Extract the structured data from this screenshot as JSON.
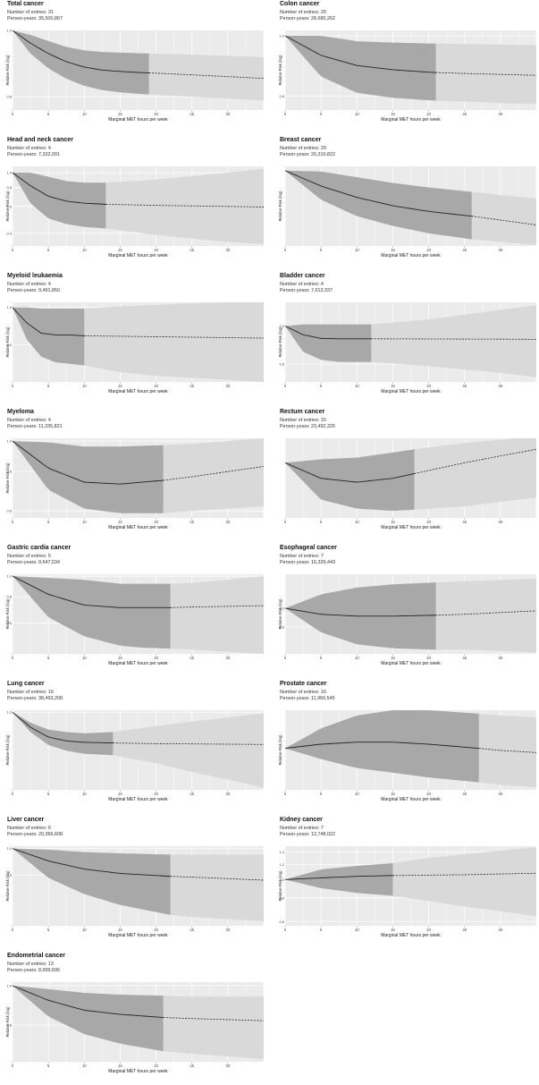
{
  "chart_data": [
    {
      "type": "line",
      "title": "Total cancer",
      "entries_label": "Number of entries: 31",
      "py_label": "Person-years: 35,500,867",
      "ylabel": "Relative Risk (log)",
      "xlabel": "Marginal MET hours per week",
      "xlim": [
        0,
        35
      ],
      "ylim": [
        0.765,
        1.0
      ],
      "yticks": [
        1.0,
        0.8
      ],
      "ytick_labels": [
        "1.0",
        "0.8"
      ],
      "xticks": [
        0,
        5,
        10,
        15,
        20,
        25,
        30
      ],
      "xtick_labels": [
        "0",
        "5",
        "10",
        "15",
        "20",
        "25",
        "30"
      ],
      "dense_until": 19,
      "x": [
        0,
        2.5,
        5,
        7.5,
        10,
        12.5,
        15,
        17.5,
        20,
        25,
        30,
        35
      ],
      "y": [
        1.0,
        0.958,
        0.925,
        0.9,
        0.884,
        0.875,
        0.871,
        0.868,
        0.866,
        0.861,
        0.856,
        0.851
      ],
      "lower": [
        1.0,
        0.925,
        0.88,
        0.85,
        0.83,
        0.818,
        0.812,
        0.808,
        0.805,
        0.8,
        0.795,
        0.79
      ],
      "upper": [
        1.0,
        0.985,
        0.965,
        0.946,
        0.935,
        0.93,
        0.928,
        0.926,
        0.925,
        0.922,
        0.918,
        0.914
      ]
    },
    {
      "type": "line",
      "title": "Colon cancer",
      "entries_label": "Number of entries: 20",
      "py_label": "Person-years: 28,680,262",
      "ylabel": "Relative Risk (log)",
      "xlabel": "Marginal MET hours per week",
      "xlim": [
        0,
        35
      ],
      "ylim": [
        0.76,
        1.02
      ],
      "yticks": [
        1.0,
        0.8
      ],
      "ytick_labels": [
        "1.0",
        "0.8"
      ],
      "xticks": [
        0,
        5,
        10,
        15,
        20,
        25,
        30
      ],
      "xtick_labels": [
        "0",
        "5",
        "10",
        "15",
        "20",
        "25",
        "30"
      ],
      "dense_until": 21,
      "x": [
        0,
        5,
        10,
        15,
        20,
        21,
        25,
        30,
        35
      ],
      "y": [
        1.0,
        0.93,
        0.896,
        0.882,
        0.874,
        0.873,
        0.87,
        0.867,
        0.864
      ],
      "lower": [
        1.0,
        0.86,
        0.81,
        0.795,
        0.788,
        0.787,
        0.784,
        0.78,
        0.777
      ],
      "upper": [
        1.0,
        1.0,
        0.98,
        0.975,
        0.972,
        0.972,
        0.97,
        0.968,
        0.966
      ]
    },
    {
      "type": "line",
      "title": "Head and neck cancer",
      "entries_label": "Number of entries: 4",
      "py_label": "Person-years: 7,332,091",
      "ylabel": "Relative Risk (log)",
      "xlabel": "Marginal MET hours per week",
      "xlim": [
        0,
        35
      ],
      "ylim": [
        0.33,
        1.1
      ],
      "yticks": [
        1.0,
        0.8,
        0.6,
        0.4
      ],
      "ytick_labels": [
        "1.0",
        "0.8",
        "0.6",
        "0.4"
      ],
      "xticks": [
        0,
        5,
        10,
        15,
        20,
        25,
        30
      ],
      "xtick_labels": [
        "0",
        "5",
        "10",
        "15",
        "20",
        "25",
        "30"
      ],
      "dense_until": 13,
      "x": [
        0,
        2.5,
        5,
        7.5,
        10,
        13,
        20,
        30,
        35
      ],
      "y": [
        1.0,
        0.82,
        0.7,
        0.65,
        0.63,
        0.62,
        0.61,
        0.6,
        0.595
      ],
      "lower": [
        1.0,
        0.63,
        0.5,
        0.46,
        0.44,
        0.43,
        0.39,
        0.35,
        0.34
      ],
      "upper": [
        1.0,
        1.0,
        0.94,
        0.88,
        0.86,
        0.86,
        0.9,
        1.0,
        1.06
      ]
    },
    {
      "type": "line",
      "title": "Breast cancer",
      "entries_label": "Number of entries: 29",
      "py_label": "Person-years: 20,316,822",
      "ylabel": "Relative Risk (log)",
      "xlabel": "Marginal MET hours per week",
      "xlim": [
        0,
        35
      ],
      "ylim": [
        0.84,
        1.01
      ],
      "yticks": [],
      "ytick_labels": [],
      "xticks": [
        0,
        5,
        10,
        15,
        20,
        25,
        30
      ],
      "xtick_labels": [
        "0",
        "5",
        "10",
        "15",
        "20",
        "25",
        "30"
      ],
      "dense_until": 26,
      "x": [
        0,
        5,
        10,
        15,
        20,
        26,
        30,
        35
      ],
      "y": [
        1.0,
        0.965,
        0.94,
        0.922,
        0.91,
        0.9,
        0.892,
        0.882
      ],
      "lower": [
        1.0,
        0.935,
        0.9,
        0.88,
        0.865,
        0.853,
        0.848,
        0.842
      ],
      "upper": [
        1.0,
        0.998,
        0.985,
        0.972,
        0.962,
        0.952,
        0.945,
        0.938
      ]
    },
    {
      "type": "line",
      "title": "Myeloid leukaemia",
      "entries_label": "Number of entries: 4",
      "py_label": "Person-years: 9,491,850",
      "ylabel": "Relative Risk (log)",
      "xlabel": "Marginal MET hours per week",
      "xlim": [
        0,
        35
      ],
      "ylim": [
        0.25,
        1.1
      ],
      "yticks": [
        1.0,
        0.5
      ],
      "ytick_labels": [
        "1.0",
        "0.5"
      ],
      "xticks": [
        0,
        5,
        10,
        15,
        20,
        25,
        30
      ],
      "xtick_labels": [
        "0",
        "5",
        "10",
        "15",
        "20",
        "25",
        "30"
      ],
      "dense_until": 10,
      "x": [
        0,
        2,
        4,
        6,
        8,
        10,
        15,
        20,
        25,
        30,
        35
      ],
      "y": [
        1.0,
        0.75,
        0.62,
        0.6,
        0.6,
        0.59,
        0.585,
        0.58,
        0.575,
        0.57,
        0.565
      ],
      "lower": [
        1.0,
        0.55,
        0.4,
        0.36,
        0.35,
        0.34,
        0.3,
        0.28,
        0.27,
        0.26,
        0.25
      ],
      "upper": [
        1.0,
        1.0,
        0.98,
        0.98,
        0.98,
        0.98,
        1.02,
        1.05,
        1.08,
        1.1,
        1.1
      ]
    },
    {
      "type": "line",
      "title": "Bladder cancer",
      "entries_label": "Number of entries: 4",
      "py_label": "Person-years: 7,613,337",
      "ylabel": "Relative Risk (log)",
      "xlabel": "Marginal MET hours per week",
      "xlim": [
        0,
        35
      ],
      "ylim": [
        0.72,
        1.15
      ],
      "yticks": [
        1.0,
        0.8
      ],
      "ytick_labels": [
        "1.0",
        "0.8"
      ],
      "xticks": [
        0,
        5,
        10,
        15,
        20,
        25,
        30
      ],
      "xtick_labels": [
        "0",
        "5",
        "10",
        "15",
        "20",
        "25",
        "30"
      ],
      "dense_until": 12,
      "x": [
        0,
        2.5,
        5,
        7.5,
        10,
        12,
        20,
        30,
        35
      ],
      "y": [
        1.0,
        0.95,
        0.93,
        0.928,
        0.928,
        0.928,
        0.927,
        0.926,
        0.925
      ],
      "lower": [
        1.0,
        0.86,
        0.82,
        0.81,
        0.81,
        0.81,
        0.79,
        0.76,
        0.74
      ],
      "upper": [
        1.0,
        1.01,
        1.01,
        1.01,
        1.01,
        1.01,
        1.04,
        1.1,
        1.13
      ]
    },
    {
      "type": "line",
      "title": "Myeloma",
      "entries_label": "Number of entries: 4",
      "py_label": "Person-years: 11,335,821",
      "ylabel": "Relative Risk (log)",
      "xlabel": "Marginal MET hours per week",
      "xlim": [
        0,
        35
      ],
      "ylim": [
        0.57,
        1.02
      ],
      "yticks": [
        1.0,
        0.8,
        0.6
      ],
      "ytick_labels": [
        "1.0",
        "0.8",
        "0.6"
      ],
      "xticks": [
        0,
        5,
        10,
        15,
        20,
        25,
        30
      ],
      "xtick_labels": [
        "0",
        "5",
        "10",
        "15",
        "20",
        "25",
        "30"
      ],
      "dense_until": 21,
      "x": [
        0,
        5,
        10,
        15,
        21,
        25,
        30,
        35
      ],
      "y": [
        1.0,
        0.82,
        0.74,
        0.73,
        0.75,
        0.77,
        0.8,
        0.83
      ],
      "lower": [
        1.0,
        0.7,
        0.61,
        0.59,
        0.59,
        0.6,
        0.61,
        0.62
      ],
      "upper": [
        1.0,
        0.99,
        0.96,
        0.96,
        0.97,
        0.98,
        1.0,
        1.02
      ]
    },
    {
      "type": "line",
      "title": "Rectum cancer",
      "entries_label": "Number of entries: 15",
      "py_label": "Person-years: 23,492,325",
      "ylabel": "",
      "xlabel": "Marginal MET hours per week",
      "xlim": [
        0,
        35
      ],
      "ylim": [
        0.73,
        1.15
      ],
      "yticks": [],
      "ytick_labels": [],
      "xticks": [
        0,
        5,
        10,
        15,
        20,
        25,
        30
      ],
      "xtick_labels": [
        "0",
        "5",
        "10",
        "15",
        "20",
        "25",
        "30"
      ],
      "dense_until": 18,
      "x": [
        0,
        5,
        10,
        15,
        18,
        25,
        30,
        35
      ],
      "y": [
        1.0,
        0.915,
        0.895,
        0.915,
        0.94,
        1.0,
        1.04,
        1.08
      ],
      "lower": [
        1.0,
        0.81,
        0.77,
        0.76,
        0.765,
        0.78,
        0.8,
        0.82
      ],
      "upper": [
        1.0,
        1.02,
        1.03,
        1.06,
        1.08,
        1.12,
        1.14,
        1.16
      ]
    },
    {
      "type": "line",
      "title": "Gastric cardia cancer",
      "entries_label": "Number of entries: 5",
      "py_label": "Person-years: 9,647,534",
      "ylabel": "Relative Risk (log)",
      "xlabel": "Marginal MET hours per week",
      "xlim": [
        0,
        35
      ],
      "ylim": [
        0.43,
        1.02
      ],
      "yticks": [
        1.0,
        0.8,
        0.6
      ],
      "ytick_labels": [
        "1.0",
        "0.8",
        "0.6"
      ],
      "xticks": [
        0,
        5,
        10,
        15,
        20,
        25,
        30
      ],
      "xtick_labels": [
        "0",
        "5",
        "10",
        "15",
        "20",
        "25",
        "30"
      ],
      "dense_until": 22,
      "x": [
        0,
        5,
        10,
        15,
        18,
        22,
        25,
        30,
        35
      ],
      "y": [
        1.0,
        0.82,
        0.73,
        0.71,
        0.71,
        0.71,
        0.715,
        0.72,
        0.725
      ],
      "lower": [
        1.0,
        0.64,
        0.52,
        0.47,
        0.46,
        0.455,
        0.45,
        0.44,
        0.43
      ],
      "upper": [
        1.0,
        0.98,
        0.96,
        0.92,
        0.92,
        0.92,
        0.93,
        0.96,
        1.0
      ]
    },
    {
      "type": "line",
      "title": "Esophageal cancer",
      "entries_label": "Number of entries: 7",
      "py_label": "Person-years: 16,339,443",
      "ylabel": "Relative Risk (log)",
      "xlabel": "Marginal MET hours per week",
      "xlim": [
        0,
        35
      ],
      "ylim": [
        0.58,
        1.5
      ],
      "yticks": [
        1.0,
        0.8
      ],
      "ytick_labels": [
        "1.0",
        "0.8"
      ],
      "xticks": [
        0,
        5,
        10,
        15,
        20,
        25,
        30
      ],
      "xtick_labels": [
        "0",
        "5",
        "10",
        "15",
        "20",
        "25",
        "30"
      ],
      "dense_until": 21,
      "x": [
        0,
        5,
        10,
        15,
        21,
        25,
        30,
        35
      ],
      "y": [
        1.0,
        0.93,
        0.91,
        0.91,
        0.92,
        0.93,
        0.95,
        0.97
      ],
      "lower": [
        1.0,
        0.75,
        0.65,
        0.62,
        0.61,
        0.61,
        0.6,
        0.59
      ],
      "upper": [
        1.0,
        1.18,
        1.28,
        1.33,
        1.36,
        1.38,
        1.4,
        1.42
      ]
    },
    {
      "type": "line",
      "title": "Lung cancer",
      "entries_label": "Number of entries: 16",
      "py_label": "Person-years: 38,493,208",
      "ylabel": "Relative Risk (log)",
      "xlabel": "Marginal MET hours per week",
      "xlim": [
        0,
        35
      ],
      "ylim": [
        0.46,
        1.02
      ],
      "yticks": [
        1.0
      ],
      "ytick_labels": [
        "1.0"
      ],
      "xticks": [
        0,
        5,
        10,
        15,
        20,
        25,
        30
      ],
      "xtick_labels": [
        "0",
        "5",
        "10",
        "15",
        "20",
        "25",
        "30"
      ],
      "dense_until": 14,
      "x": [
        0,
        2.5,
        5,
        7.5,
        10,
        14,
        20,
        25,
        30,
        35
      ],
      "y": [
        1.0,
        0.86,
        0.78,
        0.75,
        0.74,
        0.735,
        0.73,
        0.728,
        0.726,
        0.724
      ],
      "lower": [
        1.0,
        0.82,
        0.72,
        0.68,
        0.66,
        0.65,
        0.6,
        0.55,
        0.51,
        0.47
      ],
      "upper": [
        1.0,
        0.9,
        0.84,
        0.82,
        0.81,
        0.82,
        0.87,
        0.91,
        0.95,
        0.99
      ]
    },
    {
      "type": "line",
      "title": "Prostate cancer",
      "entries_label": "Number of entries: 16",
      "py_label": "Person-years: 11,966,545",
      "ylabel": "Relative Risk (log)",
      "xlabel": "Marginal MET hours per week",
      "xlim": [
        0,
        35
      ],
      "ylim": [
        0.82,
        1.2
      ],
      "yticks": [],
      "ytick_labels": [],
      "xticks": [
        0,
        5,
        10,
        15,
        20,
        25,
        30
      ],
      "xtick_labels": [
        "0",
        "5",
        "10",
        "15",
        "20",
        "25",
        "30"
      ],
      "dense_until": 27,
      "x": [
        0,
        5,
        10,
        15,
        20,
        27,
        30,
        35
      ],
      "y": [
        1.0,
        1.02,
        1.03,
        1.03,
        1.02,
        1.0,
        0.99,
        0.98
      ],
      "lower": [
        1.0,
        0.95,
        0.91,
        0.89,
        0.87,
        0.85,
        0.84,
        0.83
      ],
      "upper": [
        1.0,
        1.1,
        1.17,
        1.2,
        1.2,
        1.18,
        1.17,
        1.16
      ]
    },
    {
      "type": "line",
      "title": "Liver cancer",
      "entries_label": "Number of entries: 6",
      "py_label": "Person-years: 20,366,608",
      "ylabel": "Relative Risk (log)",
      "xlabel": "Marginal MET hours per week",
      "xlim": [
        0,
        35
      ],
      "ylim": [
        0.52,
        1.02
      ],
      "yticks": [
        1.0,
        0.8
      ],
      "ytick_labels": [
        "1.0",
        "0.8"
      ],
      "xticks": [
        0,
        5,
        10,
        15,
        20,
        25,
        30
      ],
      "xtick_labels": [
        "0",
        "5",
        "10",
        "15",
        "20",
        "25",
        "30"
      ],
      "dense_until": 22,
      "x": [
        0,
        5,
        10,
        15,
        22,
        25,
        30,
        35
      ],
      "y": [
        1.0,
        0.9,
        0.84,
        0.81,
        0.79,
        0.785,
        0.775,
        0.765
      ],
      "lower": [
        1.0,
        0.78,
        0.68,
        0.62,
        0.57,
        0.56,
        0.55,
        0.54
      ],
      "upper": [
        1.0,
        0.99,
        0.97,
        0.96,
        0.95,
        0.95,
        0.95,
        0.95
      ]
    },
    {
      "type": "line",
      "title": "Kidney cancer",
      "entries_label": "Number of entries: 7",
      "py_label": "Person-years: 12,748,022",
      "ylabel": "Relative Risk (log)",
      "xlabel": "Marginal MET hours per week",
      "xlim": [
        0,
        35
      ],
      "ylim": [
        0.57,
        1.5
      ],
      "yticks": [
        1.4,
        1.2,
        1.0,
        0.8,
        0.6
      ],
      "ytick_labels": [
        "1.4",
        "1.2",
        "1.0",
        "0.8",
        "0.6"
      ],
      "xticks": [
        0,
        5,
        10,
        15,
        20,
        25,
        30
      ],
      "xtick_labels": [
        "0",
        "5",
        "10",
        "15",
        "20",
        "25",
        "30"
      ],
      "dense_until": 15,
      "x": [
        0,
        5,
        10,
        15,
        20,
        25,
        30,
        35
      ],
      "y": [
        1.0,
        1.02,
        1.04,
        1.05,
        1.055,
        1.06,
        1.07,
        1.08
      ],
      "lower": [
        1.0,
        0.9,
        0.85,
        0.82,
        0.77,
        0.72,
        0.68,
        0.64
      ],
      "upper": [
        1.0,
        1.13,
        1.18,
        1.22,
        1.3,
        1.36,
        1.42,
        1.48
      ]
    },
    {
      "type": "line",
      "title": "Endometrial cancer",
      "entries_label": "Number of entries: 13",
      "py_label": "Person-years: 8,999,695",
      "ylabel": "Relative Risk (log)",
      "xlabel": "Marginal MET hours per week",
      "xlim": [
        0,
        35
      ],
      "ylim": [
        0.65,
        1.02
      ],
      "yticks": [
        1.0,
        0.8
      ],
      "ytick_labels": [
        "1.0",
        "0.8"
      ],
      "xticks": [
        0,
        5,
        10,
        15,
        20,
        25,
        30
      ],
      "xtick_labels": [
        "0",
        "5",
        "10",
        "15",
        "20",
        "25",
        "30"
      ],
      "dense_until": 21,
      "x": [
        0,
        5,
        10,
        15,
        21,
        25,
        30,
        35
      ],
      "y": [
        1.0,
        0.92,
        0.87,
        0.85,
        0.835,
        0.83,
        0.825,
        0.82
      ],
      "lower": [
        1.0,
        0.84,
        0.76,
        0.72,
        0.69,
        0.68,
        0.67,
        0.66
      ],
      "upper": [
        1.0,
        0.98,
        0.96,
        0.95,
        0.945,
        0.94,
        0.94,
        0.94
      ]
    }
  ]
}
